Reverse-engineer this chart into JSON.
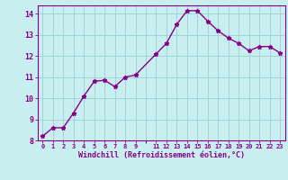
{
  "x": [
    0,
    1,
    2,
    3,
    4,
    5,
    6,
    7,
    8,
    9,
    11,
    12,
    13,
    14,
    15,
    16,
    17,
    18,
    19,
    20,
    21,
    22,
    23
  ],
  "y": [
    8.2,
    8.6,
    8.6,
    9.3,
    10.1,
    10.8,
    10.85,
    10.55,
    11.0,
    11.1,
    12.1,
    12.6,
    13.5,
    14.15,
    14.15,
    13.65,
    13.2,
    12.85,
    12.6,
    12.25,
    12.45,
    12.45,
    12.15
  ],
  "xlim": [
    -0.5,
    23.5
  ],
  "ylim": [
    8,
    14.4
  ],
  "yticks": [
    8,
    9,
    10,
    11,
    12,
    13,
    14
  ],
  "xticks": [
    0,
    1,
    2,
    3,
    4,
    5,
    6,
    7,
    8,
    9,
    11,
    12,
    13,
    14,
    15,
    16,
    17,
    18,
    19,
    20,
    21,
    22,
    23
  ],
  "xlabel": "Windchill (Refroidissement éolien,°C)",
  "line_color": "#880088",
  "marker": "*",
  "markersize": 3.5,
  "linewidth": 1.0,
  "bg_color": "#c8eef0",
  "grid_color": "#a0d4d8",
  "xlabel_color": "#880088",
  "tick_color": "#880088",
  "tick_fontsize": 5.0,
  "ytick_fontsize": 6.0,
  "xlabel_fontsize": 6.0
}
